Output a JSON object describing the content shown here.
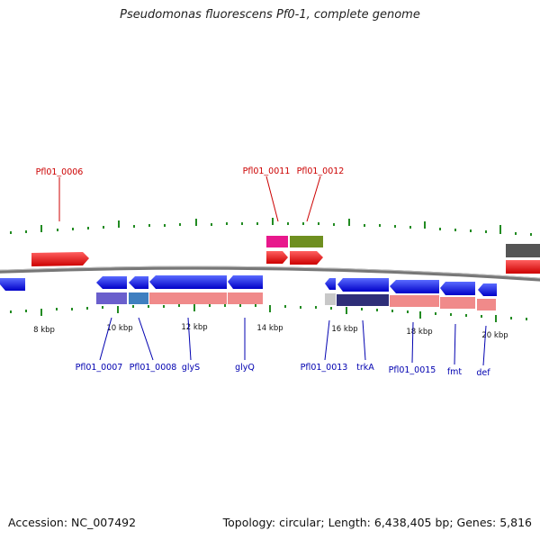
{
  "title": "Pseudomonas fluorescens Pf0-1, complete genome",
  "footer": {
    "accession": "Accession: NC_007492",
    "summary": "Topology: circular; Length: 6,438,405 bp; Genes: 5,816"
  },
  "scale_labels": [
    "8 kbp",
    "10 kbp",
    "12 kbp",
    "14 kbp",
    "16 kbp",
    "18 kbp",
    "20 kbp"
  ],
  "top_gene_labels": [
    "Pfl01_0006",
    "Pfl01_0011",
    "Pfl01_0012"
  ],
  "bottom_gene_labels": [
    "Pfl01_0007",
    "Pfl01_0008",
    "glyS",
    "glyQ",
    "Pfl01_0013",
    "trkA",
    "Pfl01_0015",
    "fmt",
    "def"
  ],
  "colors": {
    "forward_gene": "#ee1111",
    "reverse_gene": "#1111ee",
    "backbone": "#777777",
    "tick": "#228b22",
    "label_forward": "#cc0000",
    "label_reverse": "#0000b0"
  }
}
